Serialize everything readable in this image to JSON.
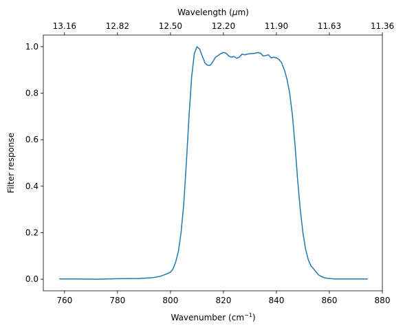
{
  "chart_data": {
    "type": "line",
    "xlabel": "Wavenumber (cm",
    "xlabel_sup": "−1",
    "xlabel_close": ")",
    "ylabel": "Filter response",
    "top_xlabel": "Wavelength (",
    "top_xlabel_mu": "μ",
    "top_xlabel_end": "m)",
    "xlim": [
      752,
      880
    ],
    "ylim": [
      -0.05,
      1.05
    ],
    "x_ticks": [
      760,
      780,
      800,
      820,
      840,
      860,
      880
    ],
    "y_ticks": [
      0.0,
      0.2,
      0.4,
      0.6,
      0.8,
      1.0
    ],
    "x_tick_labels": [
      "760",
      "780",
      "800",
      "820",
      "840",
      "860",
      "880"
    ],
    "y_tick_labels": [
      "0.0",
      "0.2",
      "0.4",
      "0.6",
      "0.8",
      "1.0"
    ],
    "top_ticks": [
      {
        "value": 760,
        "label": "13.16"
      },
      {
        "value": 780,
        "label": "12.82"
      },
      {
        "value": 800,
        "label": "12.50"
      },
      {
        "value": 820,
        "label": "12.20"
      },
      {
        "value": 840,
        "label": "11.90"
      },
      {
        "value": 860,
        "label": "11.63"
      },
      {
        "value": 880,
        "label": "11.36"
      }
    ],
    "grid": false,
    "series": [
      {
        "color": "#1f77b4",
        "x": [
          758,
          765,
          772,
          780,
          788,
          793,
          796,
          798,
          800,
          801,
          802,
          803,
          804,
          805,
          806,
          807,
          808,
          809,
          810,
          811,
          812,
          813,
          814,
          815,
          816,
          817,
          818,
          819,
          820,
          821,
          822,
          823,
          824,
          825,
          826,
          827,
          828,
          829,
          830,
          831,
          832,
          833,
          834,
          835,
          836,
          837,
          838,
          839,
          840,
          841,
          842,
          843,
          844,
          845,
          846,
          847,
          848,
          849,
          850,
          851,
          852,
          853,
          854,
          855,
          856,
          857,
          858,
          859,
          860,
          861,
          862,
          864,
          866,
          870,
          874.5
        ],
        "y": [
          0.001,
          0.001,
          0.0,
          0.002,
          0.003,
          0.006,
          0.012,
          0.02,
          0.03,
          0.045,
          0.075,
          0.12,
          0.2,
          0.32,
          0.5,
          0.7,
          0.87,
          0.97,
          1.0,
          0.99,
          0.96,
          0.93,
          0.92,
          0.92,
          0.935,
          0.955,
          0.962,
          0.97,
          0.975,
          0.972,
          0.96,
          0.955,
          0.958,
          0.95,
          0.955,
          0.968,
          0.965,
          0.968,
          0.97,
          0.97,
          0.972,
          0.975,
          0.972,
          0.96,
          0.962,
          0.965,
          0.952,
          0.955,
          0.952,
          0.945,
          0.93,
          0.9,
          0.86,
          0.8,
          0.71,
          0.58,
          0.43,
          0.3,
          0.2,
          0.13,
          0.085,
          0.058,
          0.045,
          0.03,
          0.018,
          0.011,
          0.007,
          0.004,
          0.003,
          0.002,
          0.001,
          0.001,
          0.001,
          0.001,
          0.001
        ]
      }
    ]
  }
}
